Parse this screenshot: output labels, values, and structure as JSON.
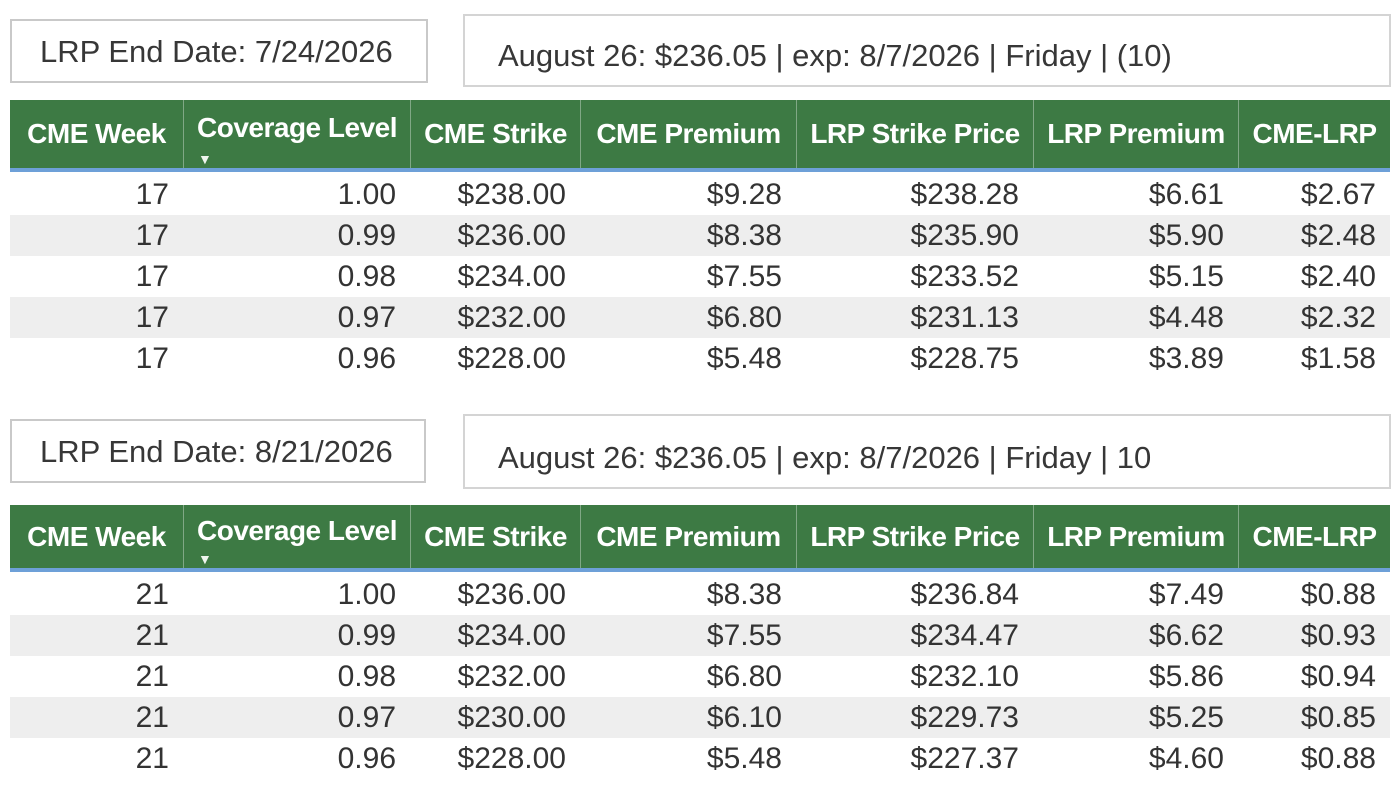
{
  "colors": {
    "header_green": "#3d7a44",
    "header_underline_blue": "#6da0d8",
    "alt_row_gray": "#eeeeee",
    "body_text": "#333333"
  },
  "icons": {
    "sort_descending": "▼"
  },
  "section1": {
    "end_date_label": "LRP End Date: 7/24/2026",
    "quote_label": "August 26: $236.05 | exp: 8/7/2026 | Friday | (10)",
    "table": {
      "columns": [
        "CME Week",
        "Coverage Level",
        "CME Strike",
        "CME Premium",
        "LRP Strike Price",
        "LRP Premium",
        "CME-LRP"
      ],
      "sorted_column": "Coverage Level",
      "rows": [
        [
          "17",
          "1.00",
          "$238.00",
          "$9.28",
          "$238.28",
          "$6.61",
          "$2.67"
        ],
        [
          "17",
          "0.99",
          "$236.00",
          "$8.38",
          "$235.90",
          "$5.90",
          "$2.48"
        ],
        [
          "17",
          "0.98",
          "$234.00",
          "$7.55",
          "$233.52",
          "$5.15",
          "$2.40"
        ],
        [
          "17",
          "0.97",
          "$232.00",
          "$6.80",
          "$231.13",
          "$4.48",
          "$2.32"
        ],
        [
          "17",
          "0.96",
          "$228.00",
          "$5.48",
          "$228.75",
          "$3.89",
          "$1.58"
        ]
      ]
    }
  },
  "section2": {
    "end_date_label": "LRP End Date: 8/21/2026",
    "quote_label": "August 26: $236.05 | exp: 8/7/2026 | Friday | 10",
    "table": {
      "columns": [
        "CME Week",
        "Coverage Level",
        "CME Strike",
        "CME Premium",
        "LRP Strike Price",
        "LRP Premium",
        "CME-LRP"
      ],
      "sorted_column": "Coverage Level",
      "rows": [
        [
          "21",
          "1.00",
          "$236.00",
          "$8.38",
          "$236.84",
          "$7.49",
          "$0.88"
        ],
        [
          "21",
          "0.99",
          "$234.00",
          "$7.55",
          "$234.47",
          "$6.62",
          "$0.93"
        ],
        [
          "21",
          "0.98",
          "$232.00",
          "$6.80",
          "$232.10",
          "$5.86",
          "$0.94"
        ],
        [
          "21",
          "0.97",
          "$230.00",
          "$6.10",
          "$229.73",
          "$5.25",
          "$0.85"
        ],
        [
          "21",
          "0.96",
          "$228.00",
          "$5.48",
          "$227.37",
          "$4.60",
          "$0.88"
        ]
      ]
    }
  }
}
